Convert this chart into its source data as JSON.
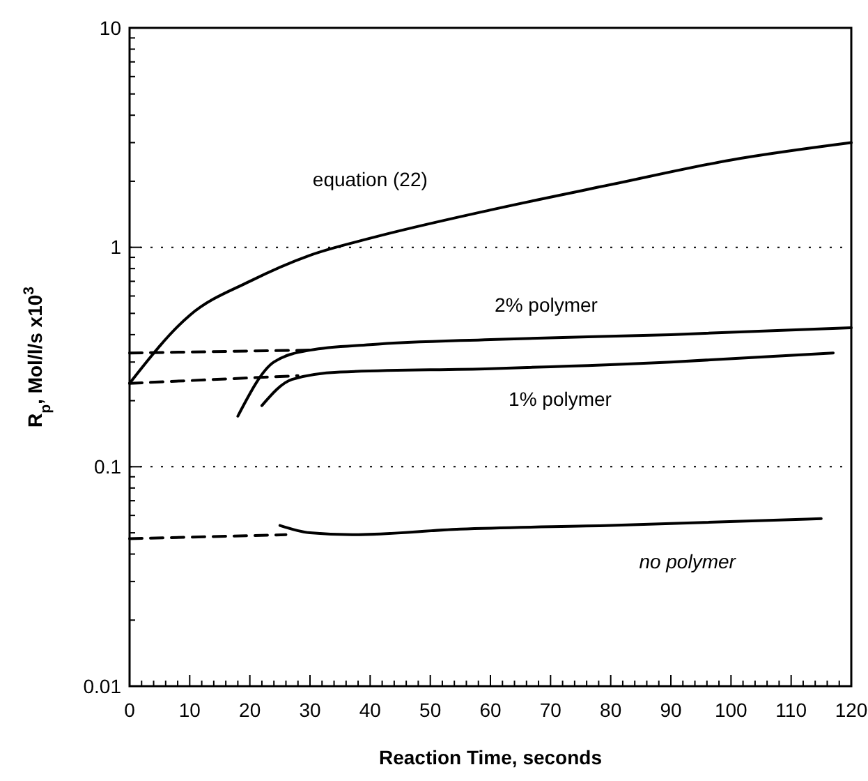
{
  "chart_data": {
    "type": "line",
    "xlabel": "Reaction Time, seconds",
    "ylabel": "R$_{p}$, Mol/l/s x10$^{3}$",
    "log": "y",
    "grid": "y",
    "line_style": "solid",
    "marker": "none",
    "xlim": [
      0,
      120
    ],
    "ylim": [
      0.01,
      10
    ],
    "xticks": [
      0,
      {
        "value": 2,
        "label": null
      },
      {
        "value": 4,
        "label": null
      },
      {
        "value": 6,
        "label": null
      },
      {
        "value": 8,
        "label": null
      },
      10,
      {
        "value": 12,
        "label": null
      },
      {
        "value": 14,
        "label": null
      },
      {
        "value": 16,
        "label": null
      },
      {
        "value": 18,
        "label": null
      },
      20,
      {
        "value": 22,
        "label": null
      },
      {
        "value": 24,
        "label": null
      },
      {
        "value": 26,
        "label": null
      },
      {
        "value": 28,
        "label": null
      },
      30,
      {
        "value": 32,
        "label": null
      },
      {
        "value": 34,
        "label": null
      },
      {
        "value": 36,
        "label": null
      },
      {
        "value": 38,
        "label": null
      },
      40,
      {
        "value": 42,
        "label": null
      },
      {
        "value": 44,
        "label": null
      },
      {
        "value": 46,
        "label": null
      },
      {
        "value": 48,
        "label": null
      },
      50,
      {
        "value": 52,
        "label": null
      },
      {
        "value": 54,
        "label": null
      },
      {
        "value": 56,
        "label": null
      },
      {
        "value": 58,
        "label": null
      },
      60,
      {
        "value": 62,
        "label": null
      },
      {
        "value": 64,
        "label": null
      },
      {
        "value": 66,
        "label": null
      },
      {
        "value": 68,
        "label": null
      },
      70,
      {
        "value": 72,
        "label": null
      },
      {
        "value": 74,
        "label": null
      },
      {
        "value": 76,
        "label": null
      },
      {
        "value": 78,
        "label": null
      },
      80,
      {
        "value": 82,
        "label": null
      },
      {
        "value": 84,
        "label": null
      },
      {
        "value": 86,
        "label": null
      },
      {
        "value": 88,
        "label": null
      },
      90,
      {
        "value": 92,
        "label": null
      },
      {
        "value": 94,
        "label": null
      },
      {
        "value": 96,
        "label": null
      },
      {
        "value": 98,
        "label": null
      },
      100,
      {
        "value": 102,
        "label": null
      },
      {
        "value": 104,
        "label": null
      },
      {
        "value": 106,
        "label": null
      },
      {
        "value": 108,
        "label": null
      },
      110,
      {
        "value": 112,
        "label": null
      },
      {
        "value": 114,
        "label": null
      },
      {
        "value": 116,
        "label": null
      },
      {
        "value": 118,
        "label": null
      },
      120
    ],
    "yticks": [
      0.01,
      {
        "value": 0.02,
        "label": null
      },
      {
        "value": 0.03,
        "label": null
      },
      {
        "value": 0.04,
        "label": null
      },
      {
        "value": 0.05,
        "label": null
      },
      {
        "value": 0.06,
        "label": null
      },
      {
        "value": 0.07,
        "label": null
      },
      {
        "value": 0.08,
        "label": null
      },
      {
        "value": 0.09,
        "label": null
      },
      0.1,
      {
        "value": 0.2,
        "label": null
      },
      {
        "value": 0.3,
        "label": null
      },
      {
        "value": 0.4,
        "label": null
      },
      {
        "value": 0.5,
        "label": null
      },
      {
        "value": 0.6,
        "label": null
      },
      {
        "value": 0.7,
        "label": null
      },
      {
        "value": 0.8,
        "label": null
      },
      {
        "value": 0.9,
        "label": null
      },
      1,
      {
        "value": 2,
        "label": null
      },
      {
        "value": 3,
        "label": null
      },
      {
        "value": 4,
        "label": null
      },
      {
        "value": 5,
        "label": null
      },
      {
        "value": 6,
        "label": null
      },
      {
        "value": 7,
        "label": null
      },
      {
        "value": 8,
        "label": null
      },
      {
        "value": 9,
        "label": null
      },
      10
    ],
    "series": [
      {
        "name": "equation (22)",
        "color": "#000000",
        "x": [
          0,
          10,
          20,
          30,
          40,
          60,
          80,
          100,
          120
        ],
        "values": [
          0.24,
          0.49,
          0.7,
          0.92,
          1.1,
          1.48,
          1.93,
          2.5,
          3.0
        ]
      },
      {
        "color": "#000000",
        "line_style": "dashed",
        "x": [
          0,
          30
        ],
        "values": [
          0.33,
          0.34
        ]
      },
      {
        "name": "2% polymer",
        "color": "#000000",
        "x": [
          18,
          24,
          30,
          40,
          60,
          90,
          120
        ],
        "values": [
          0.17,
          0.3,
          0.34,
          0.36,
          0.38,
          0.4,
          0.43
        ]
      },
      {
        "color": "#000000",
        "line_style": "dashed",
        "x": [
          0,
          28
        ],
        "values": [
          0.24,
          0.26
        ]
      },
      {
        "name": "1% polymer",
        "color": "#000000",
        "x": [
          22,
          27,
          35,
          60,
          90,
          117
        ],
        "values": [
          0.19,
          0.25,
          0.27,
          0.28,
          0.3,
          0.33
        ]
      },
      {
        "color": "#000000",
        "line_style": "dashed",
        "x": [
          0,
          26
        ],
        "values": [
          0.047,
          0.049
        ]
      },
      {
        "name": "no polymer",
        "color": "#000000",
        "x": [
          25,
          30,
          37,
          55,
          80,
          115
        ],
        "values": [
          0.054,
          0.05,
          0.049,
          0.052,
          0.054,
          0.058
        ]
      }
    ]
  }
}
